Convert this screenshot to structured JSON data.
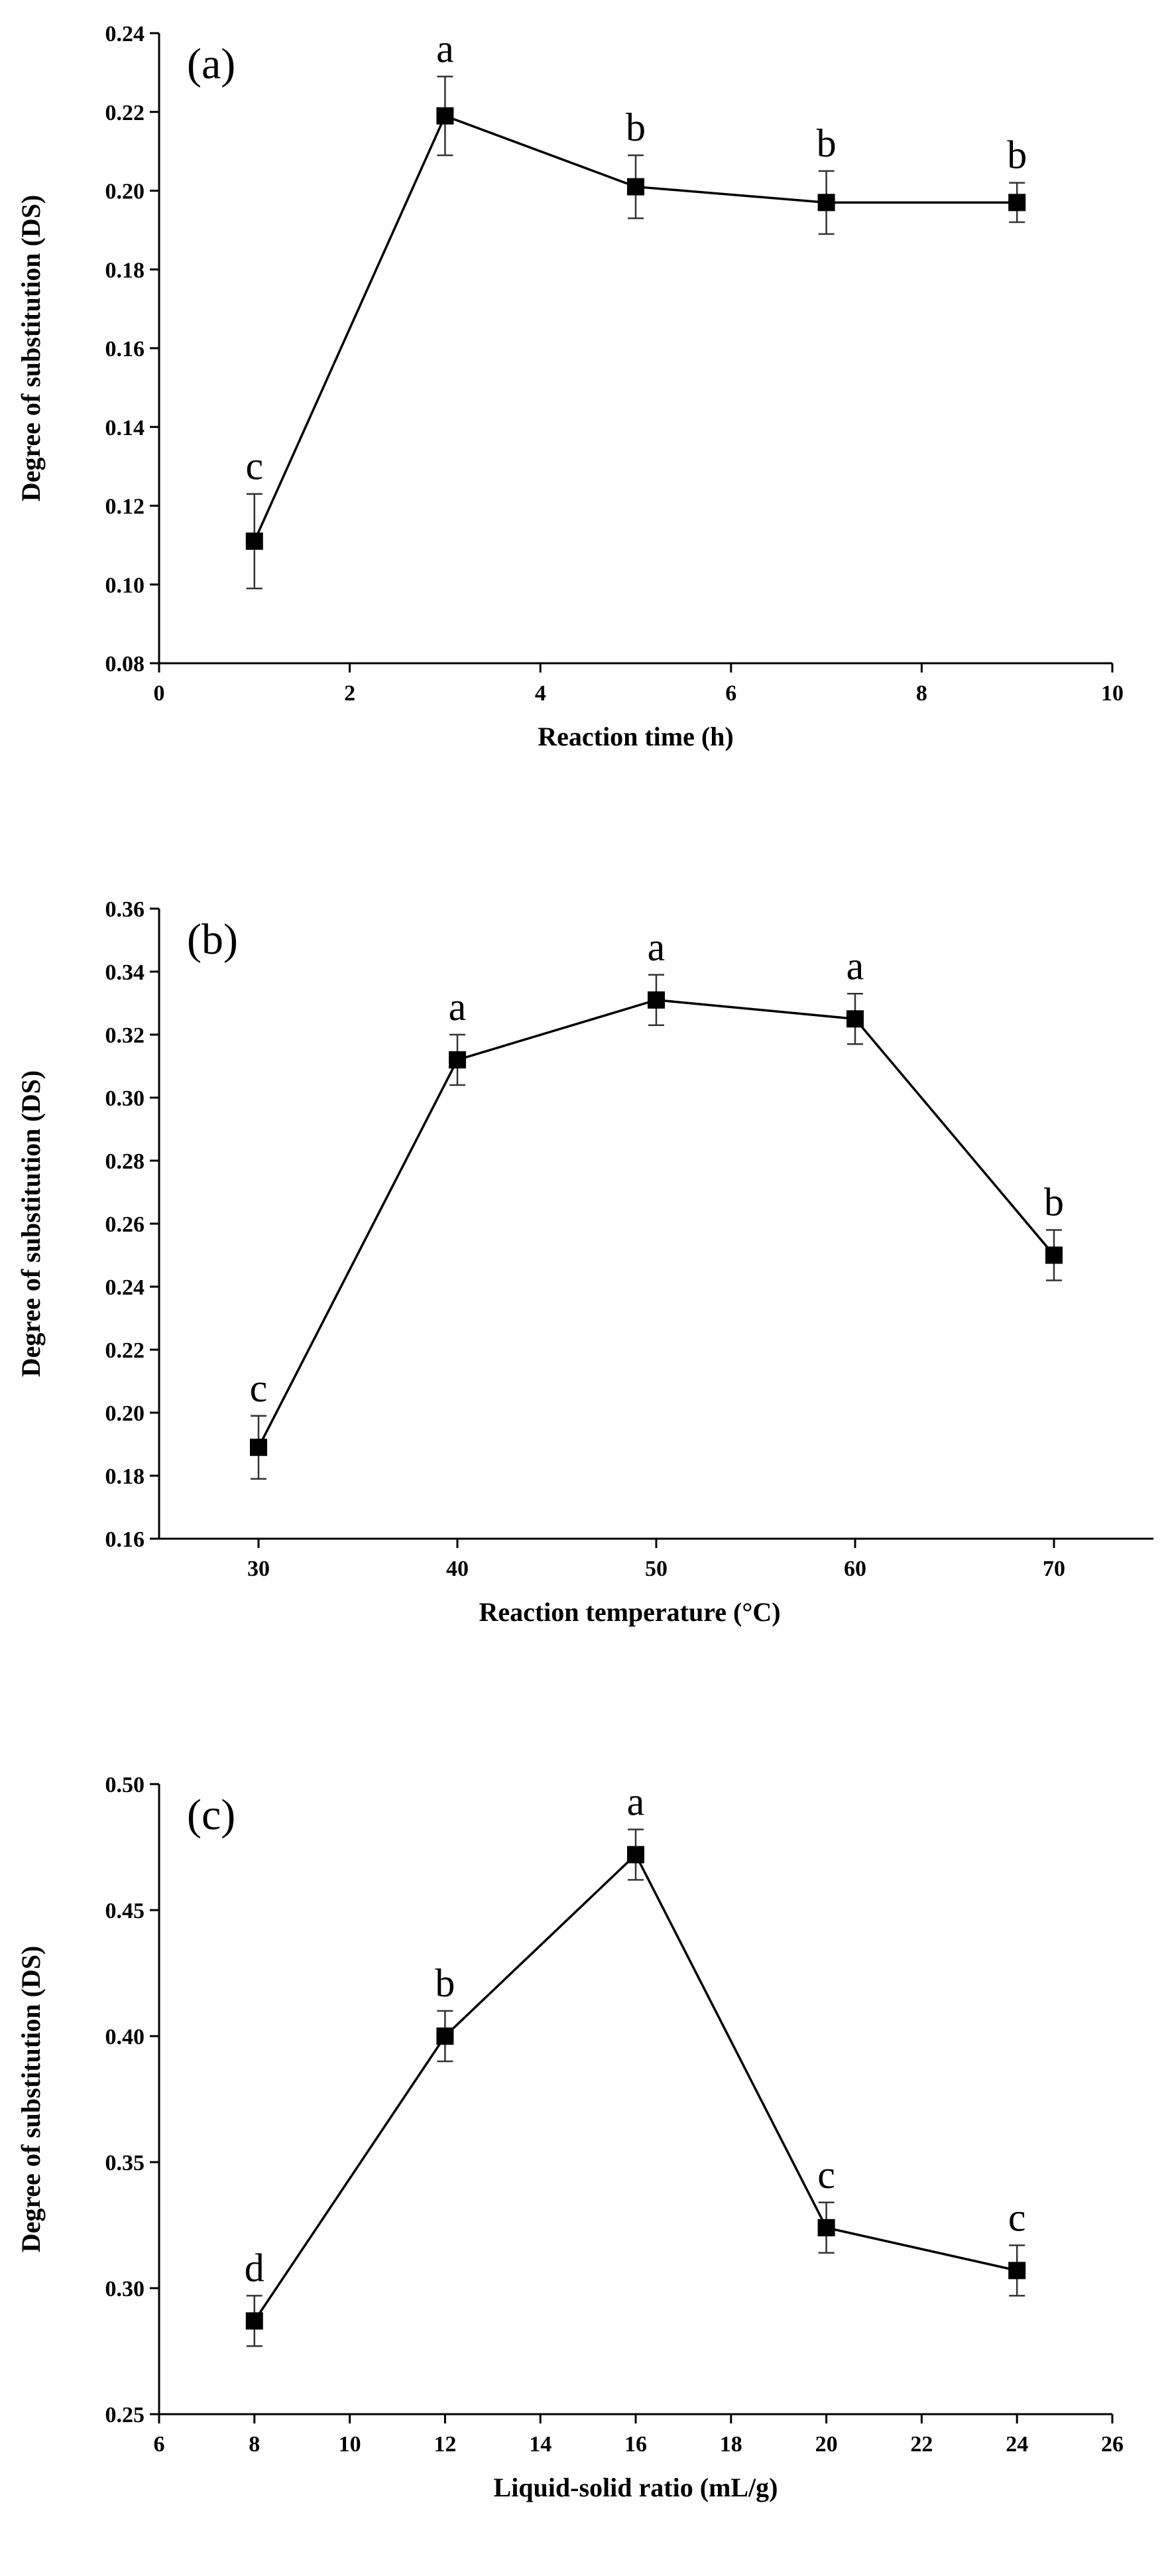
{
  "chart_data": [
    {
      "type": "line",
      "panel_label": "(a)",
      "xlabel": "Reaction time (h)",
      "ylabel": "Degree of substitution (DS)",
      "xlim": [
        0,
        10
      ],
      "ylim": [
        0.08,
        0.24
      ],
      "x_ticks": [
        0,
        2,
        4,
        6,
        8,
        10
      ],
      "y_ticks": [
        0.08,
        0.1,
        0.12,
        0.14,
        0.16,
        0.18,
        0.2,
        0.22,
        0.24
      ],
      "x_tick_labels": [
        "0",
        "2",
        "4",
        "6",
        "8",
        "10"
      ],
      "y_tick_labels": [
        "0.08",
        "0.10",
        "0.12",
        "0.14",
        "0.16",
        "0.18",
        "0.20",
        "0.22",
        "0.24"
      ],
      "series": [
        {
          "x": [
            1,
            3,
            5,
            7,
            9
          ],
          "y": [
            0.111,
            0.219,
            0.201,
            0.197,
            0.197
          ],
          "error": [
            0.012,
            0.01,
            0.008,
            0.008,
            0.005
          ],
          "labels": [
            "c",
            "a",
            "b",
            "b",
            "b"
          ]
        }
      ],
      "grid": false
    },
    {
      "type": "line",
      "panel_label": "(b)",
      "xlabel": "Reaction temperature (°C)",
      "ylabel": "Degree of substitution (DS)",
      "xlim": [
        25,
        75
      ],
      "ylim": [
        0.16,
        0.36
      ],
      "x_ticks": [
        30,
        40,
        50,
        60,
        70
      ],
      "y_ticks": [
        0.16,
        0.18,
        0.2,
        0.22,
        0.24,
        0.26,
        0.28,
        0.3,
        0.32,
        0.34,
        0.36
      ],
      "x_tick_labels": [
        "30",
        "40",
        "50",
        "60",
        "70"
      ],
      "y_tick_labels": [
        "0.16",
        "0.18",
        "0.20",
        "0.22",
        "0.24",
        "0.26",
        "0.28",
        "0.30",
        "0.32",
        "0.34",
        "0.36"
      ],
      "series": [
        {
          "x": [
            30,
            40,
            50,
            60,
            70
          ],
          "y": [
            0.189,
            0.312,
            0.331,
            0.325,
            0.25
          ],
          "error": [
            0.01,
            0.008,
            0.008,
            0.008,
            0.008
          ],
          "labels": [
            "c",
            "a",
            "a",
            "a",
            "b"
          ]
        }
      ],
      "grid": false
    },
    {
      "type": "line",
      "panel_label": "(c)",
      "xlabel": "Liquid-solid ratio (mL/g)",
      "ylabel": "Degree of substitution (DS)",
      "xlim": [
        6,
        26
      ],
      "ylim": [
        0.25,
        0.5
      ],
      "x_ticks": [
        6,
        8,
        10,
        12,
        14,
        16,
        18,
        20,
        22,
        24,
        26
      ],
      "y_ticks": [
        0.25,
        0.3,
        0.35,
        0.4,
        0.45,
        0.5
      ],
      "x_tick_labels": [
        "6",
        "8",
        "10",
        "12",
        "14",
        "16",
        "18",
        "20",
        "22",
        "24",
        "26"
      ],
      "y_tick_labels": [
        "0.25",
        "0.30",
        "0.35",
        "0.40",
        "0.45",
        "0.50"
      ],
      "series": [
        {
          "x": [
            8,
            12,
            16,
            20,
            24
          ],
          "y": [
            0.287,
            0.4,
            0.472,
            0.324,
            0.307
          ],
          "error": [
            0.01,
            0.01,
            0.01,
            0.01,
            0.01
          ],
          "labels": [
            "d",
            "b",
            "a",
            "c",
            "c"
          ]
        }
      ],
      "grid": false
    }
  ]
}
